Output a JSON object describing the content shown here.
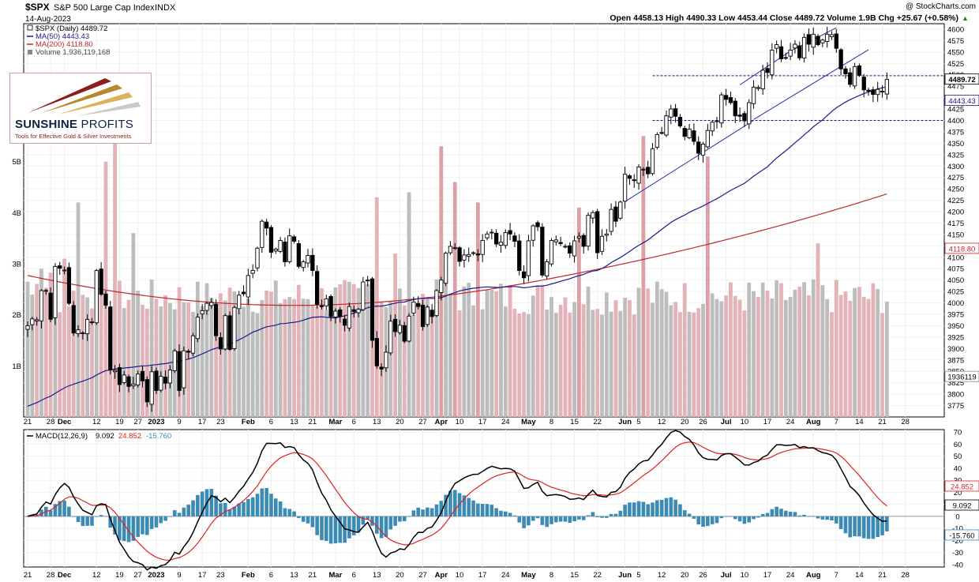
{
  "header": {
    "symbol": "$SPX",
    "name": "S&P 500 Large Cap Index",
    "exchange": "INDX",
    "date": "14-Aug-2023",
    "brand": "@ StockCharts.com",
    "quote": "Open 4458.13  High 4490.33  Low 4453.44  Close 4489.72  Volume 1.9B  Chg +25.67 (+0.58%)",
    "up_arrow": "▲"
  },
  "legend": {
    "price": "$SPX (Daily) 4489.72",
    "ma50": "MA(50) 4443.43",
    "ma200": "MA(200) 4118.80",
    "volume": "Volume 1,936,119,168"
  },
  "logo": {
    "name_bold": "SUNSHINE",
    "name_light": " PROFITS",
    "tagline": "Tools for Effective Gold & Silver Investments"
  },
  "macd_legend": {
    "label": "MACD(12,26,9)",
    "macd": "9.092",
    "signal": "24.852",
    "hist": "-15.760"
  },
  "value_tags": {
    "close": "4489.72",
    "ma50": "4443.43",
    "ma200": "4118.80",
    "volume": "1936119",
    "signal": "24.852",
    "macd": "9.092",
    "hist": "-15.760"
  },
  "colors": {
    "up": "#000000",
    "down": "#000000",
    "ma50": "#1a1a8c",
    "ma200": "#c0282d",
    "volume_up": "#bdbdbd",
    "volume_down": "#e4b3b8",
    "volume_spike": "#dba1a7",
    "histogram": "#3b8bb5",
    "macd_line": "#000000",
    "signal_line": "#e02020",
    "trendline": "#2233aa",
    "hline": "#1a1a8c"
  },
  "chart_data": {
    "type": "candlestick",
    "price_axis": {
      "min": 3750,
      "max": 4612,
      "ticks": [
        3775,
        3800,
        3825,
        3850,
        3875,
        3900,
        3925,
        3950,
        3975,
        4000,
        4025,
        4050,
        4075,
        4100,
        4125,
        4150,
        4175,
        4200,
        4225,
        4250,
        4275,
        4300,
        4325,
        4350,
        4375,
        4400,
        4425,
        4450,
        4475,
        4500,
        4525,
        4550,
        4575,
        4600
      ]
    },
    "volume_axis": {
      "max_billions": 7.7,
      "ticks": [
        "1B",
        "2B",
        "3B",
        "4B",
        "5B",
        "6B"
      ]
    },
    "macd_axis": {
      "min": -42,
      "max": 72,
      "ticks": [
        70,
        60,
        50,
        40,
        30,
        20,
        10,
        0,
        -10,
        -20,
        -30,
        -40
      ]
    },
    "x_axis_labels": [
      {
        "label": "21",
        "i": 0
      },
      {
        "label": "28",
        "i": 5
      },
      {
        "label": "Dec",
        "i": 8
      },
      {
        "label": "12",
        "i": 15
      },
      {
        "label": "19",
        "i": 20
      },
      {
        "label": "27",
        "i": 24
      },
      {
        "label": "2023",
        "i": 28
      },
      {
        "label": "9",
        "i": 33
      },
      {
        "label": "17",
        "i": 38
      },
      {
        "label": "23",
        "i": 42
      },
      {
        "label": "Feb",
        "i": 48
      },
      {
        "label": "6",
        "i": 53
      },
      {
        "label": "13",
        "i": 58
      },
      {
        "label": "21",
        "i": 62
      },
      {
        "label": "Mar",
        "i": 67
      },
      {
        "label": "6",
        "i": 71
      },
      {
        "label": "13",
        "i": 76
      },
      {
        "label": "20",
        "i": 81
      },
      {
        "label": "27",
        "i": 86
      },
      {
        "label": "Apr",
        "i": 90
      },
      {
        "label": "10",
        "i": 94
      },
      {
        "label": "17",
        "i": 99
      },
      {
        "label": "24",
        "i": 104
      },
      {
        "label": "May",
        "i": 109
      },
      {
        "label": "8",
        "i": 114
      },
      {
        "label": "15",
        "i": 119
      },
      {
        "label": "22",
        "i": 124
      },
      {
        "label": "Jun",
        "i": 130
      },
      {
        "label": "5",
        "i": 133
      },
      {
        "label": "12",
        "i": 138
      },
      {
        "label": "20",
        "i": 143
      },
      {
        "label": "26",
        "i": 147
      },
      {
        "label": "Jul",
        "i": 152
      },
      {
        "label": "10",
        "i": 156
      },
      {
        "label": "17",
        "i": 161
      },
      {
        "label": "24",
        "i": 166
      },
      {
        "label": "Aug",
        "i": 171
      },
      {
        "label": "7",
        "i": 176
      },
      {
        "label": "14",
        "i": 181
      },
      {
        "label": "21",
        "i": 186
      },
      {
        "label": "28",
        "i": 191
      }
    ],
    "n_slots": 193,
    "closes": [
      3950,
      3965,
      3963,
      4027,
      4026,
      3964,
      4080,
      4076,
      4072,
      3999,
      3934,
      3941,
      3933,
      3964,
      3958,
      4071,
      4019,
      3995,
      3853,
      3852,
      3821,
      3842,
      3817,
      3822,
      3844,
      3829,
      3783,
      3849,
      3808,
      3839,
      3824,
      3853,
      3895,
      3808,
      3895,
      3892,
      3928,
      3969,
      3983,
      3999,
      4001,
      3928,
      3899,
      3972,
      3898,
      3990,
      4017,
      4020,
      4060,
      4071,
      4120,
      4179,
      4164,
      4111,
      4118,
      4137,
      4090,
      4147,
      4135,
      4080,
      4090,
      4104,
      4071,
      3997,
      3992,
      4009,
      3970,
      3982,
      3970,
      3951,
      3992,
      3981,
      3986,
      4046,
      4049,
      3918,
      3862,
      3855,
      3892,
      3960,
      3937,
      3951,
      3916,
      3971,
      4002,
      3992,
      3948,
      3991,
      3970,
      4027,
      4050,
      4109,
      4124,
      4121,
      4091,
      4105,
      4106,
      4110,
      4105,
      4137,
      4151,
      4155,
      4129,
      4133,
      4154,
      4151,
      4135,
      4071,
      4055,
      4136,
      4169,
      4167,
      4061,
      4090,
      4137,
      4138,
      4130,
      4124,
      4109,
      4136,
      4146,
      4124,
      4192,
      4198,
      4110,
      4146,
      4151,
      4205,
      4179,
      4221,
      4282,
      4273,
      4268,
      4298,
      4293,
      4283,
      4338,
      4369,
      4372,
      4410,
      4425,
      4409,
      4388,
      4365,
      4381,
      4354,
      4328,
      4348,
      4378,
      4396,
      4399,
      4456,
      4446,
      4439,
      4410,
      4409,
      4399,
      4439,
      4473,
      4472,
      4510,
      4505,
      4554,
      4566,
      4535,
      4537,
      4554,
      4567,
      4537,
      4582,
      4567,
      4589,
      4566,
      4576,
      4589,
      4588,
      4558,
      4513,
      4502,
      4479,
      4518,
      4499,
      4467,
      4464,
      4457,
      4468,
      4464,
      4489.72
    ],
    "price_annotations": {
      "horizontal_lines": [
        4498,
        4400
      ],
      "trend_lines": [
        {
          "from": [
            130,
            4222
          ],
          "to": [
            158,
            4400
          ]
        },
        {
          "from": [
            158,
            4402
          ],
          "to": [
            183,
            4555
          ]
        },
        {
          "from": [
            155,
            4478
          ],
          "to": [
            166,
            4552
          ]
        },
        {
          "from": [
            166,
            4552
          ],
          "to": [
            176,
            4603
          ]
        }
      ]
    }
  }
}
